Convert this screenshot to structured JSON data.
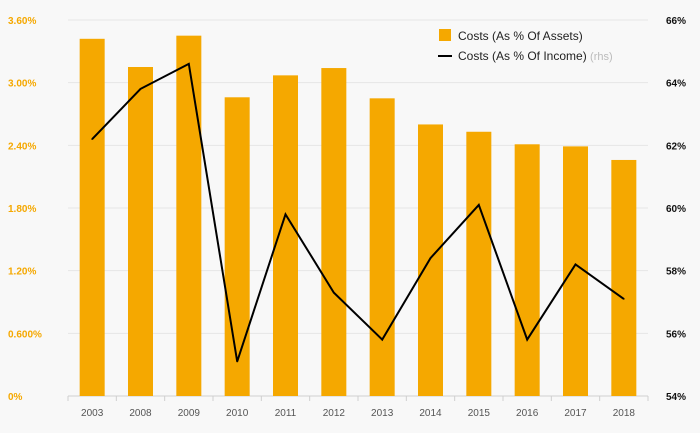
{
  "chart_data": {
    "type": "bar+line",
    "categories": [
      "2003",
      "2008",
      "2009",
      "2010",
      "2011",
      "2012",
      "2013",
      "2014",
      "2015",
      "2016",
      "2017",
      "2018"
    ],
    "series": [
      {
        "name": "Costs (As % Of Assets)",
        "type": "bar",
        "axis": "left",
        "color": "#f5a800",
        "values": [
          3.42,
          3.15,
          3.45,
          2.86,
          3.07,
          3.14,
          2.85,
          2.6,
          2.53,
          2.41,
          2.39,
          2.26
        ]
      },
      {
        "name": "Costs (As % Of Income)",
        "suffix": "(rhs)",
        "type": "line",
        "axis": "right",
        "color": "#000000",
        "values": [
          62.2,
          63.8,
          64.6,
          55.1,
          59.8,
          57.3,
          55.8,
          58.4,
          60.1,
          55.8,
          58.2,
          57.1
        ]
      }
    ],
    "left_axis": {
      "min": 0,
      "max": 3.6,
      "ticks": [
        0,
        0.6,
        1.2,
        1.8,
        2.4,
        3.0,
        3.6
      ],
      "tick_labels": [
        "0%",
        "0.600%",
        "1.20%",
        "1.80%",
        "2.40%",
        "3.00%",
        "3.60%"
      ],
      "color": "#f5a800"
    },
    "right_axis": {
      "min": 54,
      "max": 66,
      "ticks": [
        54,
        56,
        58,
        60,
        62,
        64,
        66
      ],
      "tick_labels": [
        "54%",
        "56%",
        "58%",
        "60%",
        "62%",
        "64%",
        "66%"
      ],
      "color": "#111111"
    },
    "title": "",
    "xlabel": "",
    "ylabel": "",
    "legend_position": "top-right",
    "grid": true
  }
}
